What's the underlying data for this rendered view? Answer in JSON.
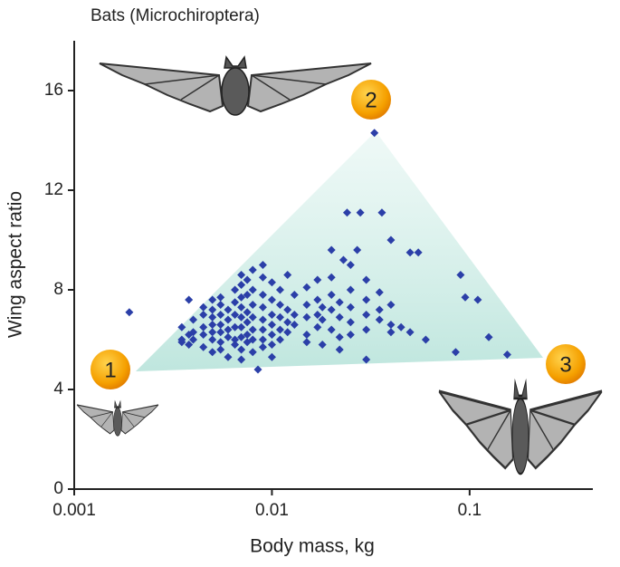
{
  "chart_data": {
    "type": "scatter",
    "title": "Bats (Microchiroptera)",
    "x_label": "Body mass, kg",
    "y_label": "Wing aspect ratio",
    "log_x": true,
    "color": "#2b3fa8",
    "xlim": [
      0.001,
      0.42
    ],
    "xticks": [
      0.001,
      0.01,
      0.1
    ],
    "ylim": [
      0,
      18
    ],
    "yticks": [
      0,
      4,
      8,
      12,
      16
    ],
    "markers": [
      "1",
      "2",
      "3"
    ],
    "x": [
      0.0019,
      0.0035,
      0.0035,
      0.0035,
      0.0038,
      0.0038,
      0.0038,
      0.004,
      0.004,
      0.004,
      0.0045,
      0.0045,
      0.0045,
      0.0045,
      0.0045,
      0.005,
      0.005,
      0.005,
      0.005,
      0.005,
      0.005,
      0.005,
      0.0055,
      0.0055,
      0.0055,
      0.0055,
      0.0055,
      0.0055,
      0.0055,
      0.006,
      0.006,
      0.006,
      0.006,
      0.006,
      0.0065,
      0.0065,
      0.0065,
      0.0065,
      0.0065,
      0.0065,
      0.007,
      0.007,
      0.007,
      0.007,
      0.007,
      0.007,
      0.007,
      0.007,
      0.007,
      0.0075,
      0.0075,
      0.0075,
      0.0075,
      0.0075,
      0.0075,
      0.008,
      0.008,
      0.008,
      0.008,
      0.008,
      0.008,
      0.008,
      0.009,
      0.009,
      0.009,
      0.009,
      0.009,
      0.009,
      0.009,
      0.009,
      0.01,
      0.01,
      0.01,
      0.01,
      0.01,
      0.01,
      0.01,
      0.011,
      0.011,
      0.011,
      0.011,
      0.011,
      0.012,
      0.012,
      0.012,
      0.012,
      0.013,
      0.013,
      0.013,
      0.015,
      0.015,
      0.015,
      0.015,
      0.015,
      0.017,
      0.017,
      0.017,
      0.017,
      0.018,
      0.018,
      0.018,
      0.02,
      0.02,
      0.02,
      0.02,
      0.022,
      0.022,
      0.022,
      0.022,
      0.025,
      0.025,
      0.025,
      0.025,
      0.03,
      0.03,
      0.03,
      0.03,
      0.03,
      0.035,
      0.035,
      0.035,
      0.04,
      0.04,
      0.04,
      0.0085,
      0.033,
      0.024,
      0.028,
      0.036,
      0.027,
      0.02,
      0.04,
      0.05,
      0.055,
      0.023,
      0.025,
      0.06,
      0.045,
      0.05,
      0.085,
      0.09,
      0.095,
      0.11,
      0.125,
      0.155
    ],
    "values": [
      7.1,
      6.5,
      6.0,
      5.9,
      7.6,
      6.2,
      5.8,
      6.8,
      6.3,
      6.0,
      7.0,
      6.5,
      6.2,
      5.7,
      7.3,
      7.6,
      7.2,
      6.9,
      6.6,
      6.3,
      6.0,
      5.5,
      7.7,
      7.4,
      7.0,
      6.6,
      6.3,
      5.9,
      5.6,
      7.2,
      6.8,
      6.4,
      6.1,
      5.3,
      8.0,
      7.5,
      7.0,
      6.5,
      6.0,
      5.8,
      8.6,
      8.2,
      7.7,
      7.3,
      6.9,
      6.5,
      6.1,
      5.6,
      5.2,
      8.4,
      7.8,
      7.1,
      6.7,
      6.2,
      5.9,
      8.8,
      8.0,
      7.4,
      6.9,
      6.4,
      6.0,
      5.5,
      9.0,
      8.5,
      7.8,
      7.3,
      6.8,
      6.4,
      6.0,
      5.7,
      8.3,
      7.6,
      7.0,
      6.6,
      6.2,
      5.8,
      5.3,
      8.0,
      7.4,
      6.9,
      6.4,
      6.0,
      8.6,
      7.2,
      6.7,
      6.3,
      7.8,
      7.0,
      6.6,
      8.1,
      7.4,
      6.9,
      6.2,
      5.9,
      8.4,
      7.6,
      7.0,
      6.5,
      7.3,
      6.8,
      5.8,
      8.5,
      7.8,
      7.2,
      6.4,
      7.5,
      6.9,
      6.1,
      5.6,
      8.0,
      7.3,
      6.7,
      6.2,
      8.4,
      7.6,
      7.0,
      6.4,
      5.2,
      7.9,
      7.2,
      6.8,
      7.4,
      6.6,
      6.3,
      4.8,
      14.3,
      11.1,
      11.1,
      11.1,
      9.6,
      9.6,
      10.0,
      9.5,
      9.5,
      9.2,
      9.0,
      6.0,
      6.5,
      6.3,
      5.5,
      8.6,
      7.7,
      7.6,
      6.1,
      5.4
    ]
  }
}
